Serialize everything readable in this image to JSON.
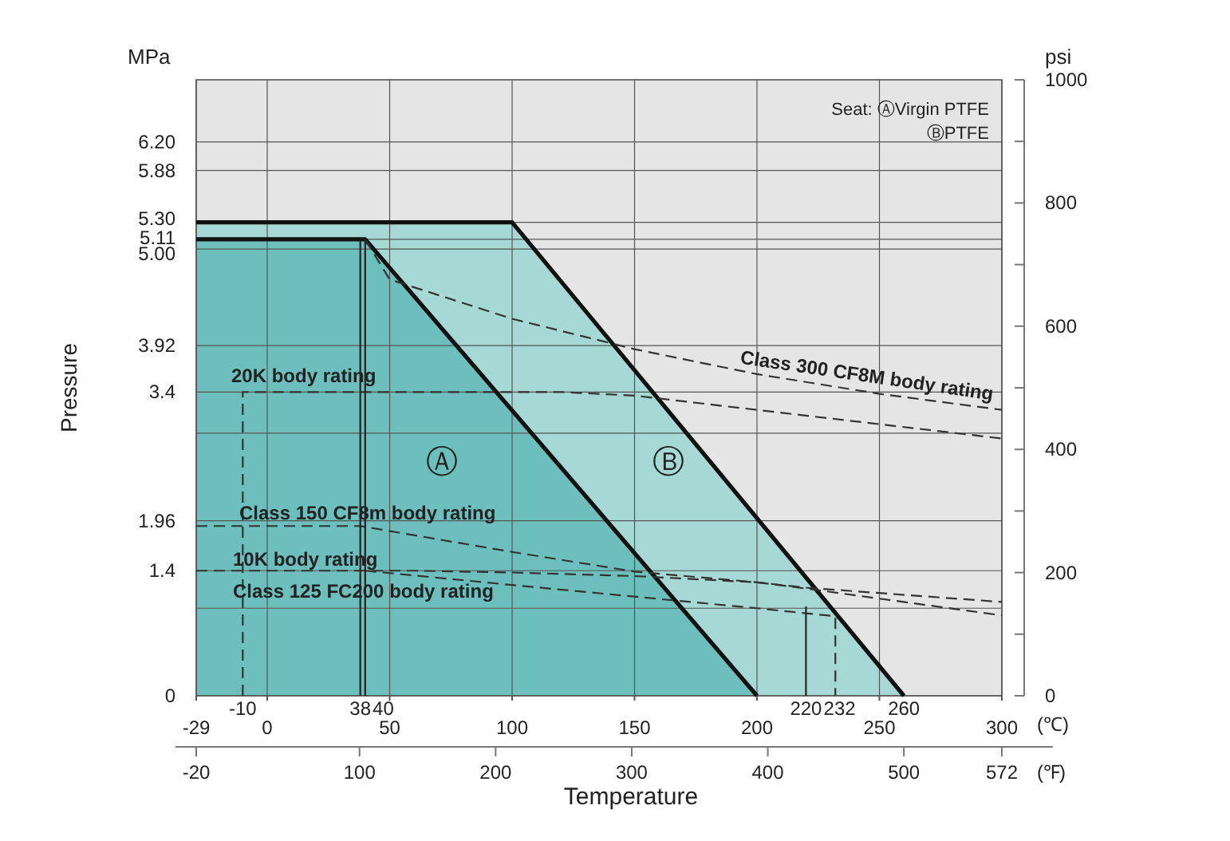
{
  "chart_data": {
    "type": "area",
    "xlabel": "Temperature",
    "ylabel": "Pressure",
    "y2label": "psi",
    "x2label": "(℉)",
    "xlim": [
      -29,
      300
    ],
    "xticks": [
      -29,
      0,
      50,
      100,
      150,
      200,
      250,
      300
    ],
    "x2lim": [
      -20,
      572
    ],
    "x2ticks": [
      -20,
      100,
      200,
      300,
      400,
      500,
      572
    ],
    "ylim": [
      0,
      6.895
    ],
    "yticks": [
      0,
      {
        "value": 0.98,
        "label": null
      },
      1.4,
      1.96,
      {
        "value": 2.94,
        "label": null
      },
      3.4,
      3.92,
      {
        "value": 5,
        "label": "5.00"
      },
      5.11,
      {
        "value": 5.3,
        "label": "5.30"
      },
      5.88,
      {
        "value": 6.2,
        "label": "6.20"
      }
    ],
    "y2lim": [
      0,
      1000
    ],
    "y2ticks": [
      0,
      {
        "value": 100,
        "label": null
      },
      200,
      {
        "value": 300,
        "label": null
      },
      400,
      {
        "value": 500,
        "label": null
      },
      600,
      {
        "value": 700,
        "label": null
      },
      800,
      {
        "value": 900,
        "label": null
      },
      1000
    ],
    "grid": true,
    "series": [
      {
        "color": "#a6d8d6",
        "x": [
          -29,
          100,
          260
        ],
        "values": [
          5.3,
          5.3,
          0
        ]
      },
      {
        "color": "#6dbfbd",
        "x": [
          -29,
          40,
          200
        ],
        "values": [
          5.11,
          5.11,
          0
        ]
      },
      {
        "type": "line",
        "name": "Class 300 CF8M body rating",
        "color": "#333333",
        "line_style": "dashed",
        "x": [
          40,
          50,
          100,
          150,
          200,
          250,
          300
        ],
        "values": [
          5.11,
          4.66,
          4.22,
          3.88,
          3.6,
          3.38,
          3.2
        ]
      },
      {
        "type": "line",
        "name": "20K body rating",
        "color": "#333333",
        "line_style": "dashed",
        "x": [
          -10,
          -10,
          120,
          150,
          200,
          250,
          300
        ],
        "values": [
          0,
          3.4,
          3.4,
          3.36,
          3.2,
          3.04,
          2.88
        ]
      },
      {
        "type": "line",
        "name": "Class 150 CF8m body rating",
        "color": "#333333",
        "line_style": "dashed",
        "x": [
          -29,
          38,
          100,
          150,
          200,
          220,
          300
        ],
        "values": [
          1.9,
          1.9,
          1.61,
          1.39,
          1.27,
          1.21,
          1.05
        ]
      },
      {
        "type": "line",
        "name": "10K body rating",
        "color": "#333333",
        "line_style": "dashed",
        "x": [
          -29,
          60,
          100,
          150,
          200,
          220,
          300
        ],
        "values": [
          1.4,
          1.4,
          1.38,
          1.34,
          1.27,
          1.2,
          0.9
        ]
      },
      {
        "type": "line",
        "name": "Class 125 FC200 body rating",
        "color": "#333333",
        "line_style": "dashed",
        "x": [
          40,
          100,
          150,
          200,
          232,
          232
        ],
        "values": [
          1.4,
          1.24,
          1.11,
          0.98,
          0.89,
          0
        ]
      },
      {
        "type": "line",
        "color": "#222222",
        "x": [
          38,
          38
        ],
        "values": [
          0,
          5.11
        ]
      },
      {
        "type": "line",
        "color": "#222222",
        "x": [
          40,
          40
        ],
        "values": [
          0,
          5.11
        ]
      },
      {
        "type": "line",
        "color": "#222222",
        "x": [
          220,
          220
        ],
        "values": [
          0,
          1.0
        ]
      }
    ],
    "annotations": [
      "Ⓐ",
      "Ⓑ",
      "Seat: ⒶVirgin PTFE",
      "ⒷPTFE",
      "MPa",
      "(℃)",
      {
        "text": "-10",
        "x": -10,
        "y": 0
      },
      {
        "text": "38",
        "x": 38,
        "y": 0
      },
      {
        "text": "40",
        "x": 40,
        "y": 0
      },
      {
        "text": "220",
        "x": 220,
        "y": 0
      },
      {
        "text": "232",
        "x": 232,
        "y": 0
      },
      {
        "text": "260",
        "x": 260,
        "y": 0
      }
    ]
  }
}
